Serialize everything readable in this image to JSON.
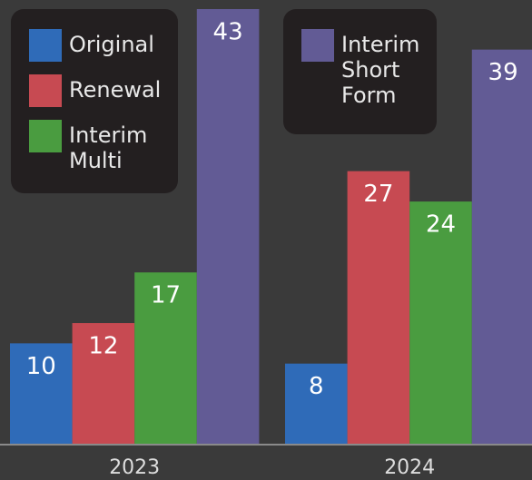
{
  "chart_data": {
    "type": "bar",
    "categories": [
      "2023",
      "2024"
    ],
    "series": [
      {
        "name": "Original",
        "color": "#2f6bb8",
        "values": [
          10,
          8
        ]
      },
      {
        "name": "Renewal",
        "color": "#c74a52",
        "values": [
          12,
          27
        ]
      },
      {
        "name": "Interim Multi",
        "color": "#4a9c40",
        "values": [
          17,
          24
        ]
      },
      {
        "name": "Interim Short Form",
        "color": "#625b95",
        "values": [
          43,
          39
        ]
      }
    ],
    "ylim": [
      0,
      43
    ]
  }
}
